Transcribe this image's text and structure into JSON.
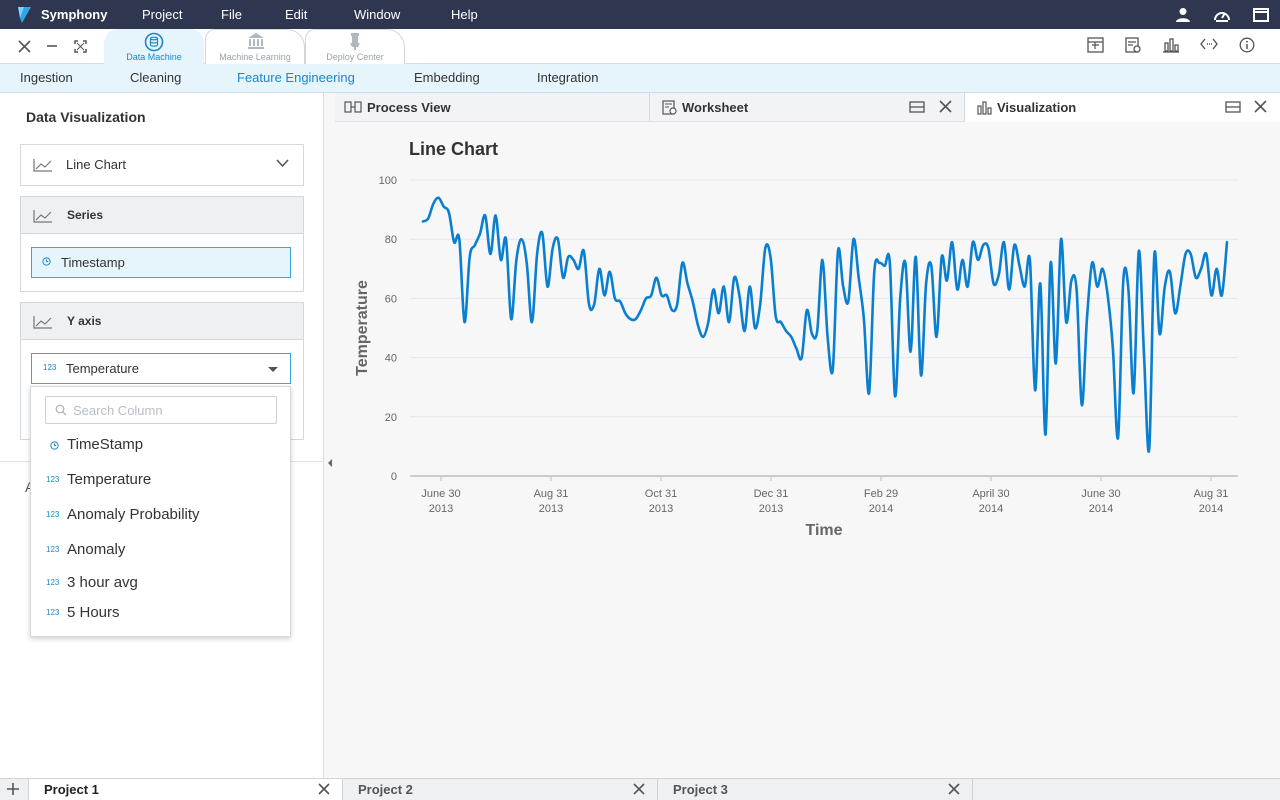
{
  "app": {
    "name": "Symphony",
    "menu": [
      "Project",
      "File",
      "Edit",
      "Window",
      "Help"
    ],
    "icons": [
      "user-icon",
      "dashboard-icon",
      "window-icon"
    ]
  },
  "toolbar": {
    "window_buttons": [
      "close-icon",
      "minimize-icon",
      "fullscreen-icon"
    ],
    "mode_tabs": [
      {
        "label": "Data Machine",
        "icon": "database-icon",
        "active": true
      },
      {
        "label": "Machine Learning",
        "icon": "bank-icon",
        "active": false
      },
      {
        "label": "Deploy Center",
        "icon": "deploy-icon",
        "active": false
      }
    ],
    "tool_icons": [
      "frame-icon",
      "inspect-icon",
      "bar-chart-icon",
      "code-icon",
      "info-icon"
    ]
  },
  "subnav": {
    "items": [
      "Ingestion",
      "Cleaning",
      "Feature Engineering",
      "Embedding",
      "Integration"
    ],
    "active": "Feature Engineering"
  },
  "left_panel": {
    "title": "Data Visualization",
    "chart_type": "Line Chart",
    "series_section": {
      "title": "Series",
      "value": "Timestamp"
    },
    "y_axis_section": {
      "title": "Y axis",
      "value": "Temperature"
    },
    "hidden_label": "A",
    "dropdown": {
      "search_placeholder": "Search Column",
      "options": [
        {
          "label": "TimeStamp",
          "icon": "clock-icon"
        },
        {
          "label": "Temperature",
          "icon": "123"
        },
        {
          "label": "Anomaly Probability",
          "icon": "123"
        },
        {
          "label": "Anomaly",
          "icon": "123"
        },
        {
          "label": "3 hour avg",
          "icon": "123"
        },
        {
          "label": "5 Hours",
          "icon": "123"
        }
      ]
    }
  },
  "panel_tabs": [
    {
      "label": "Process View",
      "icon": "process-icon"
    },
    {
      "label": "Worksheet",
      "icon": "worksheet-icon"
    },
    {
      "label": "Visualization",
      "icon": "bar-chart-icon",
      "active": true
    }
  ],
  "chart_data": {
    "type": "line",
    "title": "Line Chart",
    "xlabel": "Time",
    "ylabel": "Temperature",
    "ylim": [
      0,
      100
    ],
    "yticks": [
      0,
      20,
      40,
      60,
      80,
      100
    ],
    "xtick_labels": [
      [
        "June 30",
        "2013"
      ],
      [
        "Aug 31",
        "2013"
      ],
      [
        "Oct 31",
        "2013"
      ],
      [
        "Dec 31",
        "2013"
      ],
      [
        "Feb 29",
        "2014"
      ],
      [
        "April 30",
        "2014"
      ],
      [
        "June 30",
        "2014"
      ],
      [
        "Aug 31",
        "2014"
      ]
    ],
    "grid": true,
    "color": "#0a7fd0",
    "series": [
      {
        "values": [
          86,
          87,
          92,
          94,
          91,
          89,
          79,
          80,
          52,
          74,
          78,
          82,
          88,
          75,
          88,
          73,
          80,
          53,
          73,
          80,
          72,
          52,
          75,
          82,
          64,
          77,
          80,
          67,
          74,
          73,
          70,
          76,
          58,
          58,
          70,
          61,
          69,
          60,
          59,
          55,
          53,
          53,
          56,
          60,
          61,
          67,
          61,
          61,
          56,
          58,
          72,
          65,
          59,
          51,
          47,
          52,
          63,
          55,
          64,
          52,
          67,
          61,
          49,
          64,
          50,
          58,
          77,
          74,
          54,
          52,
          49,
          47,
          43,
          40,
          56,
          48,
          49,
          73,
          47,
          36,
          76,
          64,
          59,
          80,
          67,
          53,
          28,
          69,
          72,
          71,
          72,
          27,
          60,
          72,
          42,
          74,
          34,
          65,
          71,
          47,
          74,
          66,
          79,
          63,
          73,
          64,
          79,
          73,
          78,
          77,
          65,
          68,
          79,
          63,
          78,
          71,
          64,
          73,
          29,
          65,
          14,
          72,
          38,
          80,
          52,
          66,
          63,
          24,
          53,
          72,
          64,
          70,
          61,
          43,
          13,
          66,
          63,
          28,
          76,
          41,
          9,
          75,
          48,
          64,
          69,
          55,
          64,
          75,
          75,
          67,
          70,
          75,
          61,
          70,
          61,
          79
        ]
      }
    ]
  },
  "projects": [
    {
      "label": "Project 1",
      "active": true
    },
    {
      "label": "Project 2",
      "active": false
    },
    {
      "label": "Project 3",
      "active": false
    }
  ]
}
